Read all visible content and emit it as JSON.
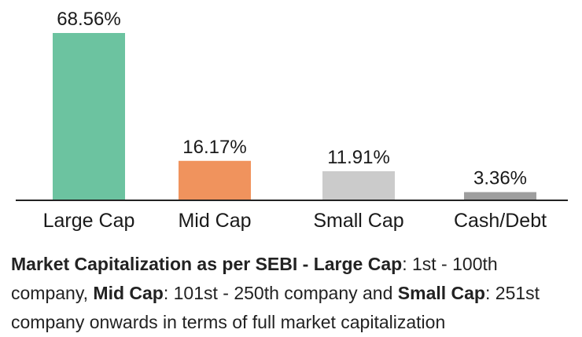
{
  "chart_data": {
    "type": "bar",
    "categories": [
      "Large Cap",
      "Mid Cap",
      "Small Cap",
      "Cash/Debt"
    ],
    "values": [
      68.56,
      16.17,
      11.91,
      3.36
    ],
    "data_labels": [
      "68.56%",
      "16.17%",
      "11.91%",
      "3.36%"
    ],
    "colors": [
      "#6cc3a0",
      "#f0935d",
      "#cbcbcb",
      "#9e9e9e"
    ],
    "title": "",
    "xlabel": "",
    "ylabel": "",
    "ylim": [
      0,
      68.56
    ],
    "grid": false,
    "legend": "none"
  },
  "footnote": {
    "b1": "Market Capitalization as per SEBI -",
    "b2": "Large Cap",
    "t2": ": 1st - 100th company,",
    "b3": "Mid Cap",
    "t3": ": 101st - 250th company and",
    "b4": "Small Cap",
    "t4": ": 251st company onwards in terms of full market capitalization"
  }
}
